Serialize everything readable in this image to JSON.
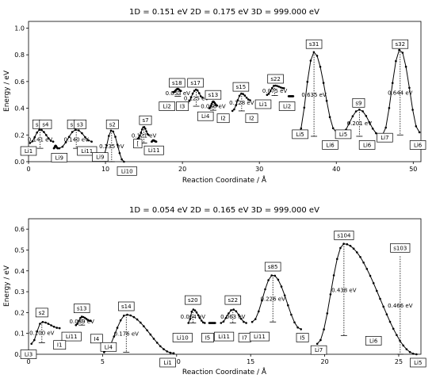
{
  "chart_data": [
    {
      "type": "line",
      "title": "1D = 0.151 eV      2D = 0.175 eV      3D = 999.000 eV",
      "xlabel": "Reaction Coordinate / Å",
      "ylabel": "Energy / eV",
      "xlim": [
        0,
        51
      ],
      "ylim": [
        0,
        1.05
      ],
      "xticks": [
        0,
        10,
        20,
        30,
        40,
        50
      ],
      "yticks": [
        0.0,
        0.2,
        0.4,
        0.6,
        0.8,
        1.0
      ],
      "grid": false,
      "peaks": [
        {
          "x0": 0.2,
          "x1": 3.2,
          "peak_x": 1.5,
          "peak_y": 0.24,
          "y0": 0.14,
          "y1": 0.15
        },
        {
          "x0": 3.3,
          "x1": 3.8,
          "peak_x": 3.5,
          "peak_y": 0.12,
          "y0": 0.1,
          "y1": 0.1
        },
        {
          "x0": 4.0,
          "x1": 8.2,
          "peak_x": 6.2,
          "peak_y": 0.24,
          "y0": 0.1,
          "y1": 0.15
        },
        {
          "x0": 9.6,
          "x1": 12.4,
          "peak_x": 10.8,
          "peak_y": 0.235,
          "y0": 0.03,
          "y1": 0.0
        },
        {
          "x0": 14.2,
          "x1": 15.6,
          "peak_x": 15.0,
          "peak_y": 0.26,
          "y0": 0.17,
          "y1": 0.2
        },
        {
          "x0": 16.0,
          "x1": 16.6,
          "peak_x": 16.2,
          "peak_y": 0.16,
          "y0": 0.15,
          "y1": 0.15
        },
        {
          "x0": 18.8,
          "x1": 19.8,
          "peak_x": 19.4,
          "peak_y": 0.545,
          "y0": 0.52,
          "y1": 0.53
        },
        {
          "x0": 20.5,
          "x1": 22.6,
          "peak_x": 21.8,
          "peak_y": 0.54,
          "y0": 0.43,
          "y1": 0.48
        },
        {
          "x0": 23.5,
          "x1": 24.5,
          "peak_x": 24.0,
          "peak_y": 0.45,
          "y0": 0.4,
          "y1": 0.42
        },
        {
          "x0": 26.5,
          "x1": 28.8,
          "peak_x": 27.7,
          "peak_y": 0.51,
          "y0": 0.38,
          "y1": 0.46
        },
        {
          "x0": 31.0,
          "x1": 33.2,
          "peak_x": 32.0,
          "peak_y": 0.57,
          "y0": 0.5,
          "y1": 0.55
        },
        {
          "x0": 33.8,
          "x1": 34.4,
          "peak_x": 34.0,
          "peak_y": 0.49,
          "y0": 0.49,
          "y1": 0.49
        },
        {
          "x0": 35.0,
          "x1": 40.0,
          "peak_x": 37.1,
          "peak_y": 0.82,
          "y0": 0.19,
          "y1": 0.22
        },
        {
          "x0": 40.4,
          "x1": 45.6,
          "peak_x": 43.0,
          "peak_y": 0.39,
          "y0": 0.19,
          "y1": 0.2
        },
        {
          "x0": 46.0,
          "x1": 50.8,
          "peak_x": 48.3,
          "peak_y": 0.84,
          "y0": 0.2,
          "y1": 0.22
        }
      ],
      "labels": [
        {
          "text": "s",
          "x": 1.1,
          "y": 0.28
        },
        {
          "text": "s4",
          "x": 2.2,
          "y": 0.28
        },
        {
          "text": "s",
          "x": 5.6,
          "y": 0.28
        },
        {
          "text": "s3",
          "x": 6.7,
          "y": 0.28
        },
        {
          "text": "s2",
          "x": 10.9,
          "y": 0.28
        },
        {
          "text": "s7",
          "x": 15.2,
          "y": 0.31
        },
        {
          "text": "s18",
          "x": 19.3,
          "y": 0.59
        },
        {
          "text": "s17",
          "x": 21.7,
          "y": 0.59
        },
        {
          "text": "s13",
          "x": 24.0,
          "y": 0.5
        },
        {
          "text": "s15",
          "x": 27.6,
          "y": 0.56
        },
        {
          "text": "s22",
          "x": 32.1,
          "y": 0.62
        },
        {
          "text": "s31",
          "x": 37.1,
          "y": 0.88
        },
        {
          "text": "s9",
          "x": 42.9,
          "y": 0.44
        },
        {
          "text": "s32",
          "x": 48.3,
          "y": 0.88
        },
        {
          "text": "Li1",
          "x": 0.0,
          "y": 0.08
        },
        {
          "text": "Li9",
          "x": 4.0,
          "y": 0.03
        },
        {
          "text": "Li11",
          "x": 7.6,
          "y": 0.08
        },
        {
          "text": "Li9",
          "x": 9.3,
          "y": 0.035
        },
        {
          "text": "Li10",
          "x": 12.8,
          "y": -0.07
        },
        {
          "text": "[",
          "x": 14.2,
          "y": 0.135
        },
        {
          "text": "Li11",
          "x": 16.3,
          "y": 0.085
        },
        {
          "text": "Li2",
          "x": 18.0,
          "y": 0.415
        },
        {
          "text": "I3",
          "x": 20.0,
          "y": 0.415
        },
        {
          "text": "Li4",
          "x": 23.0,
          "y": 0.34
        },
        {
          "text": "I2",
          "x": 25.3,
          "y": 0.325
        },
        {
          "text": "I2",
          "x": 29.0,
          "y": 0.325
        },
        {
          "text": "Li1",
          "x": 30.5,
          "y": 0.43
        },
        {
          "text": "Li2",
          "x": 33.6,
          "y": 0.415
        },
        {
          "text": "Li5",
          "x": 35.3,
          "y": 0.205
        },
        {
          "text": "Li6",
          "x": 39.2,
          "y": 0.125
        },
        {
          "text": "Li5",
          "x": 40.9,
          "y": 0.205
        },
        {
          "text": "Li6",
          "x": 44.0,
          "y": 0.125
        },
        {
          "text": "Li7",
          "x": 46.3,
          "y": 0.18
        },
        {
          "text": "Li6",
          "x": 50.6,
          "y": 0.125
        }
      ],
      "barriers": [
        {
          "text": "0.141 eV",
          "x": 1.5,
          "top": 0.24,
          "bottom": 0.1
        },
        {
          "text": "0.140 eV",
          "x": 6.2,
          "top": 0.24,
          "bottom": 0.1
        },
        {
          "text": "0.235 eV",
          "x": 10.8,
          "top": 0.235,
          "bottom": 0.0
        },
        {
          "text": "0.121 eV",
          "x": 15.0,
          "top": 0.26,
          "bottom": 0.14
        },
        {
          "text": "0.053 eV",
          "x": 19.4,
          "top": 0.545,
          "bottom": 0.49
        },
        {
          "text": "0.125 eV",
          "x": 21.8,
          "top": 0.54,
          "bottom": 0.415
        },
        {
          "text": "0.066 eV",
          "x": 24.0,
          "top": 0.45,
          "bottom": 0.385
        },
        {
          "text": "0.128 eV",
          "x": 27.7,
          "top": 0.51,
          "bottom": 0.38
        },
        {
          "text": "0.075 eV",
          "x": 32.0,
          "top": 0.57,
          "bottom": 0.495
        },
        {
          "text": "0.635 eV",
          "x": 37.1,
          "top": 0.82,
          "bottom": 0.19
        },
        {
          "text": "0.201 eV",
          "x": 43.0,
          "top": 0.39,
          "bottom": 0.19
        },
        {
          "text": "0.644 eV",
          "x": 48.3,
          "top": 0.84,
          "bottom": 0.2
        }
      ]
    },
    {
      "type": "line",
      "title": "1D = 0.054 eV      2D = 0.165 eV      3D = 999.000 eV",
      "xlabel": "Reaction Coordinate / Å",
      "ylabel": "Energy / eV",
      "xlim": [
        0,
        26.5
      ],
      "ylim": [
        0,
        0.65
      ],
      "xticks": [
        0,
        5,
        10,
        15,
        20,
        25
      ],
      "yticks": [
        0.0,
        0.1,
        0.2,
        0.3,
        0.4,
        0.5,
        0.6
      ],
      "grid": false,
      "peaks": [
        {
          "x0": 0.2,
          "x1": 2.1,
          "peak_x": 0.9,
          "peak_y": 0.155,
          "y0": 0.05,
          "y1": 0.125
        },
        {
          "x0": 3.2,
          "x1": 4.2,
          "peak_x": 3.6,
          "peak_y": 0.18,
          "y0": 0.14,
          "y1": 0.16
        },
        {
          "x0": 5.1,
          "x1": 9.8,
          "peak_x": 6.6,
          "peak_y": 0.19,
          "y0": 0.01,
          "y1": 0.005
        },
        {
          "x0": 10.8,
          "x1": 11.9,
          "peak_x": 11.1,
          "peak_y": 0.215,
          "y0": 0.15,
          "y1": 0.15
        },
        {
          "x0": 12.2,
          "x1": 12.6,
          "peak_x": 12.4,
          "peak_y": 0.15,
          "y0": 0.15,
          "y1": 0.15
        },
        {
          "x0": 13.0,
          "x1": 14.7,
          "peak_x": 13.8,
          "peak_y": 0.215,
          "y0": 0.15,
          "y1": 0.15
        },
        {
          "x0": 15.1,
          "x1": 18.4,
          "peak_x": 16.5,
          "peak_y": 0.38,
          "y0": 0.155,
          "y1": 0.12
        },
        {
          "x0": 19.5,
          "x1": 26.2,
          "peak_x": 21.3,
          "peak_y": 0.53,
          "y0": 0.05,
          "y1": 0.0
        }
      ],
      "labels": [
        {
          "text": "s2",
          "x": 0.9,
          "y": 0.2
        },
        {
          "text": "s13",
          "x": 3.6,
          "y": 0.22
        },
        {
          "text": "s14",
          "x": 6.6,
          "y": 0.23
        },
        {
          "text": "s20",
          "x": 11.1,
          "y": 0.26
        },
        {
          "text": "s22",
          "x": 13.8,
          "y": 0.26
        },
        {
          "text": "s85",
          "x": 16.5,
          "y": 0.42
        },
        {
          "text": "s104",
          "x": 21.3,
          "y": 0.57
        },
        {
          "text": "s103",
          "x": 25.1,
          "y": 0.51
        },
        {
          "text": "Li3",
          "x": 0.0,
          "y": 0.0
        },
        {
          "text": "Li11",
          "x": 2.9,
          "y": 0.085
        },
        {
          "text": "I1",
          "x": 2.1,
          "y": 0.045
        },
        {
          "text": "I4",
          "x": 4.6,
          "y": 0.075
        },
        {
          "text": "Li4",
          "x": 5.4,
          "y": 0.035
        },
        {
          "text": "Li1",
          "x": 9.4,
          "y": -0.04
        },
        {
          "text": "Li10",
          "x": 10.4,
          "y": 0.08
        },
        {
          "text": "I5",
          "x": 12.1,
          "y": 0.08
        },
        {
          "text": "Li11",
          "x": 13.2,
          "y": 0.085
        },
        {
          "text": "I7",
          "x": 14.6,
          "y": 0.08
        },
        {
          "text": "Li11",
          "x": 15.6,
          "y": 0.085
        },
        {
          "text": "I5",
          "x": 18.5,
          "y": 0.08
        },
        {
          "text": "Li7",
          "x": 19.6,
          "y": 0.02
        },
        {
          "text": "Li6",
          "x": 23.3,
          "y": 0.065
        },
        {
          "text": "Li5",
          "x": 26.3,
          "y": -0.04
        }
      ],
      "barriers": [
        {
          "text": "0.100 eV",
          "x": 0.9,
          "top": 0.155,
          "bottom": 0.055
        },
        {
          "text": "0.039 eV",
          "x": 3.6,
          "top": 0.18,
          "bottom": 0.14
        },
        {
          "text": "0.176 eV",
          "x": 6.6,
          "top": 0.19,
          "bottom": 0.01
        },
        {
          "text": "0.064 eV",
          "x": 11.1,
          "top": 0.215,
          "bottom": 0.15
        },
        {
          "text": "0.063 eV",
          "x": 13.8,
          "top": 0.215,
          "bottom": 0.15
        },
        {
          "text": "0.226 eV",
          "x": 16.5,
          "top": 0.38,
          "bottom": 0.155
        },
        {
          "text": "0.438 eV",
          "x": 21.3,
          "top": 0.53,
          "bottom": 0.09
        },
        {
          "text": "0.466 eV",
          "x": 25.1,
          "top": 0.47,
          "bottom": 0.0
        }
      ]
    }
  ]
}
